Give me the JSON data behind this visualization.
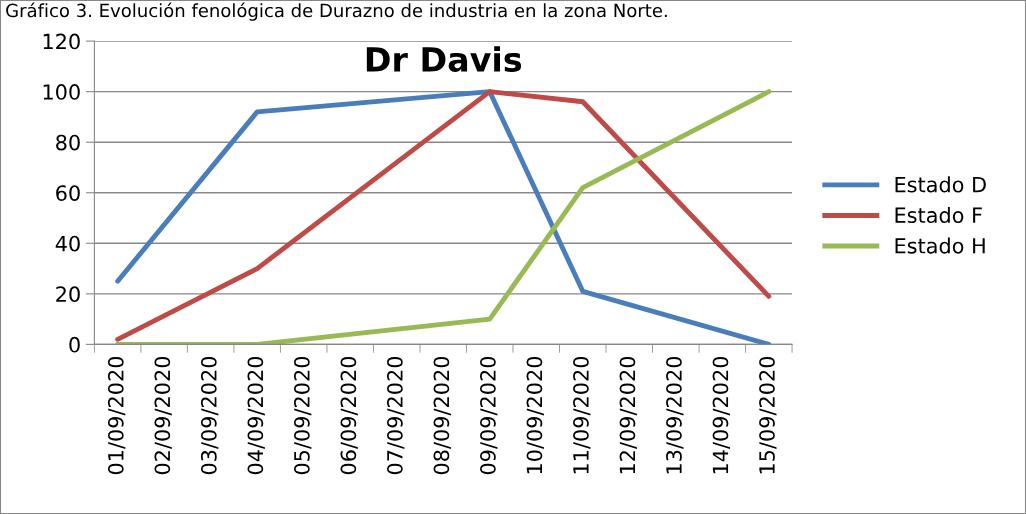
{
  "chart_data": {
    "type": "line",
    "title": "Dr Davis",
    "annotations": [
      "Gráfico 3. Evolución fenológica de Durazno de industria en la zona Norte."
    ],
    "categories": [
      "01/09/2020",
      "02/09/2020",
      "03/09/2020",
      "04/09/2020",
      "05/09/2020",
      "06/09/2020",
      "07/09/2020",
      "08/09/2020",
      "09/09/2020",
      "10/09/2020",
      "11/09/2020",
      "12/09/2020",
      "13/09/2020",
      "14/09/2020",
      "15/09/2020"
    ],
    "series": [
      {
        "name": "Estado D",
        "color": "#4a7ebb",
        "values": [
          25,
          null,
          null,
          92,
          null,
          null,
          null,
          null,
          100,
          null,
          21,
          null,
          null,
          null,
          0
        ]
      },
      {
        "name": "Estado F",
        "color": "#be4b48",
        "values": [
          2,
          null,
          null,
          30,
          null,
          null,
          null,
          null,
          100,
          null,
          96,
          null,
          null,
          null,
          19
        ]
      },
      {
        "name": "Estado H",
        "color": "#98b954",
        "values": [
          0,
          null,
          null,
          0,
          null,
          null,
          null,
          null,
          10,
          null,
          62,
          null,
          null,
          null,
          100
        ]
      }
    ],
    "ylim": [
      0,
      120
    ],
    "yticks": [
      0,
      20,
      40,
      60,
      80,
      100,
      120
    ],
    "grid": "y",
    "legend": "right",
    "marker": "none",
    "line_style": "solid"
  }
}
